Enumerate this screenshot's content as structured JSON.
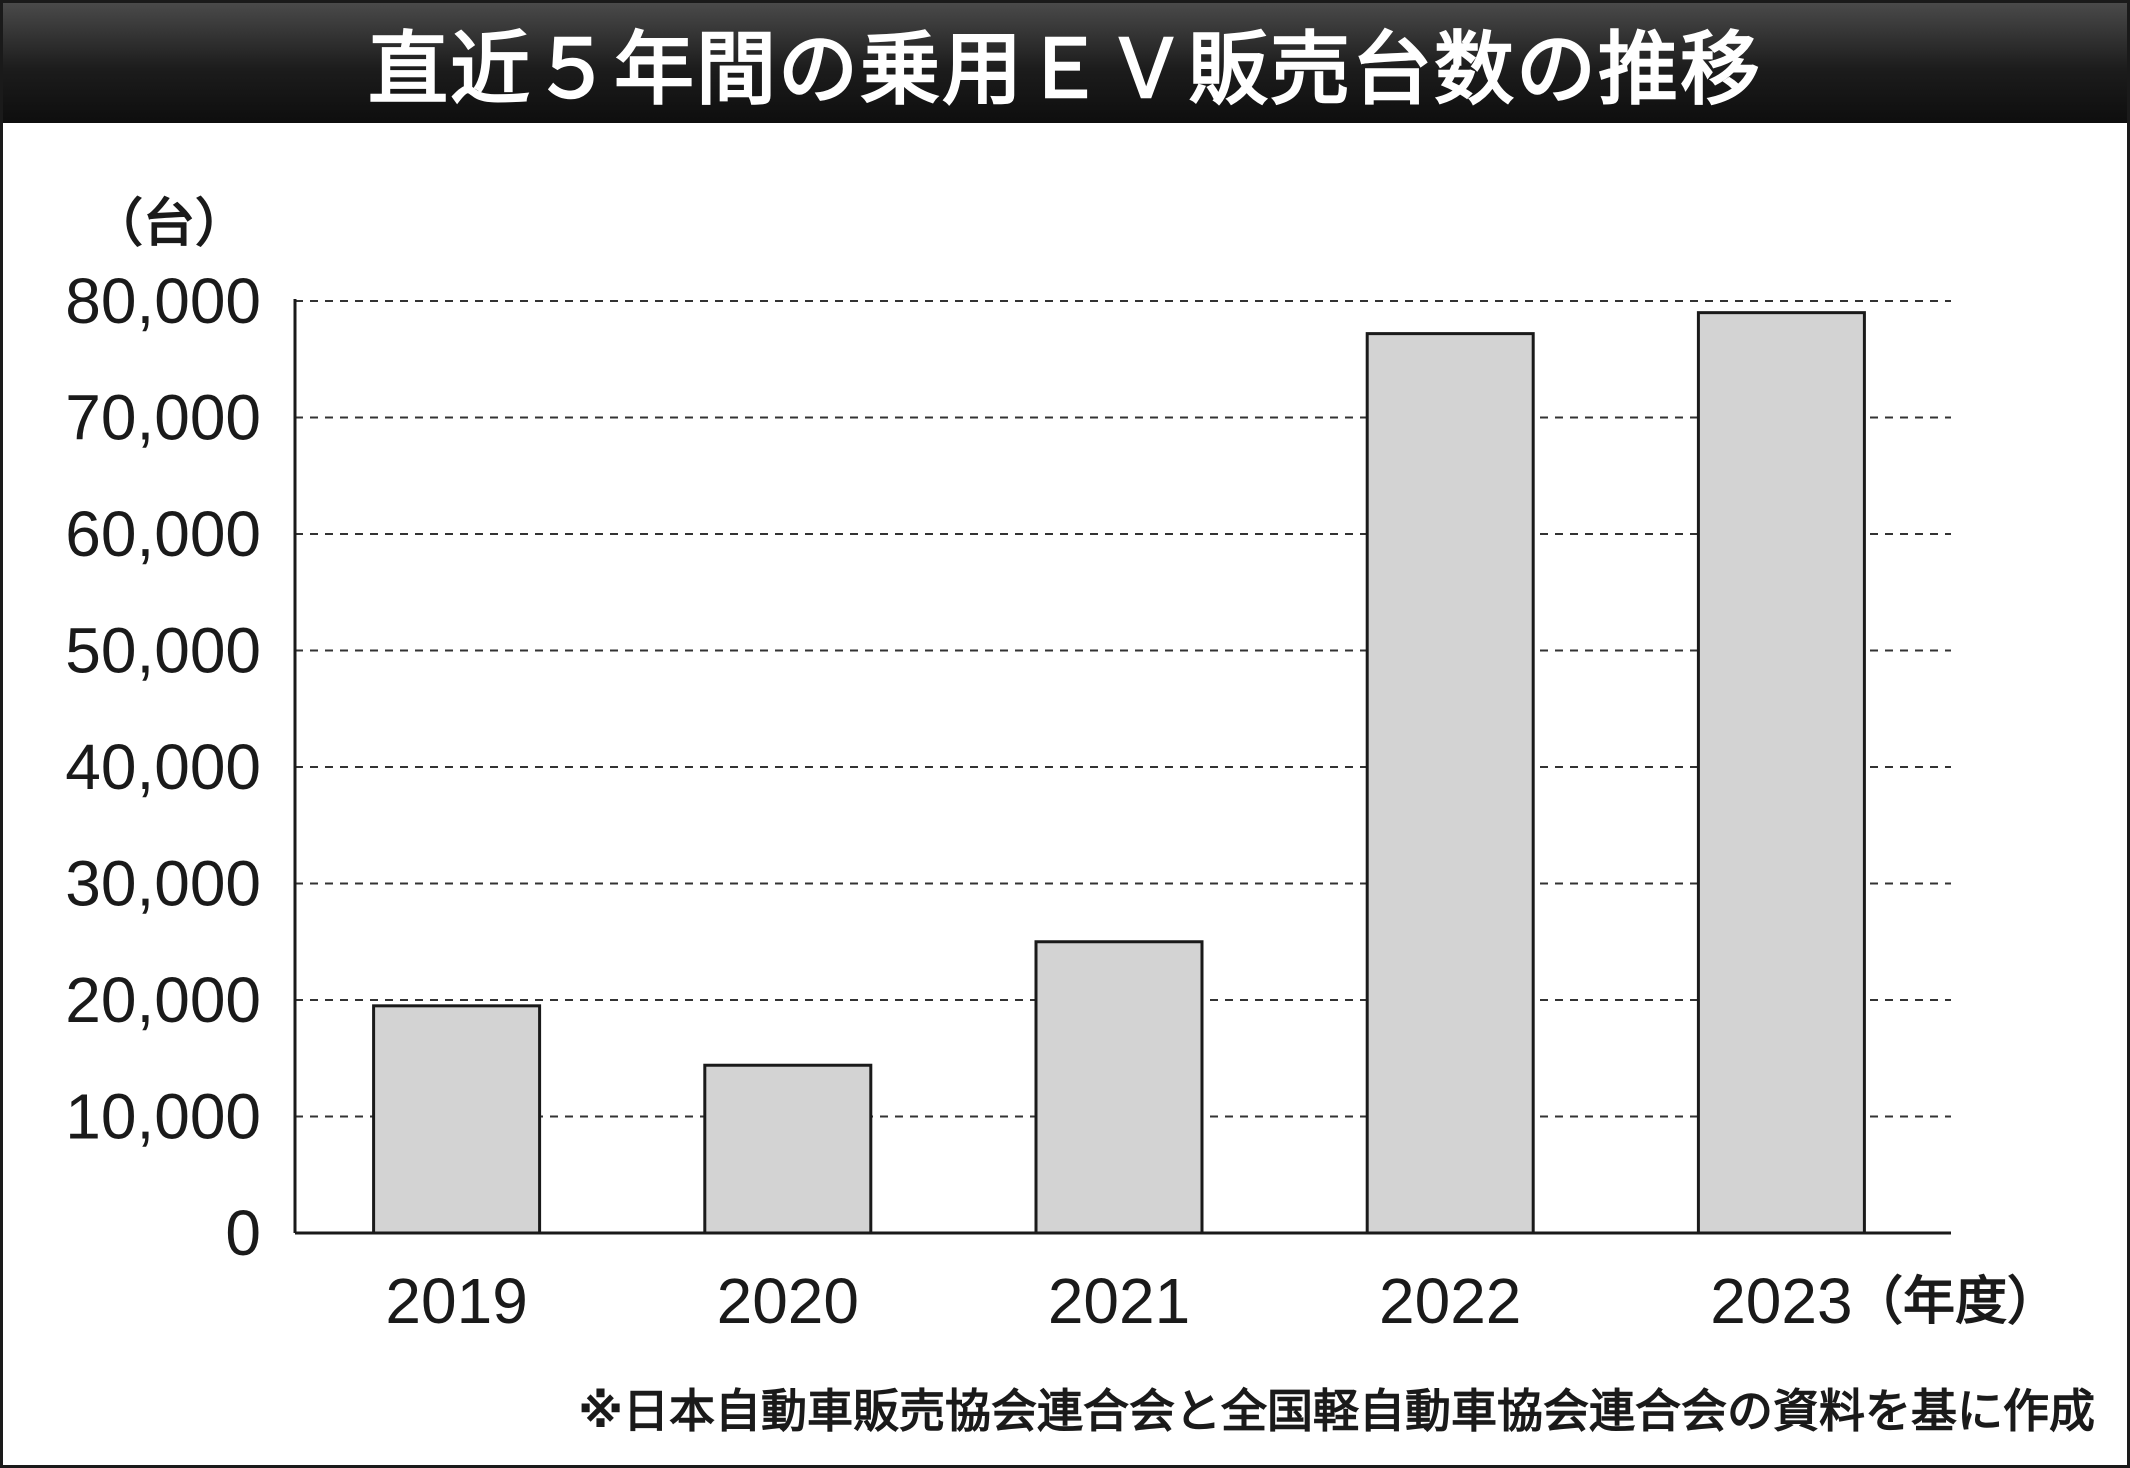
{
  "chart_data": {
    "type": "bar",
    "title": "直近５年間の乗用ＥＶ販売台数の推移",
    "ylabel": "（台）",
    "xlabel": "（年度）",
    "categories": [
      "2019",
      "2020",
      "2021",
      "2022",
      "2023"
    ],
    "values": [
      19500,
      14400,
      25000,
      77200,
      79000
    ],
    "ylim": [
      0,
      80000
    ],
    "yticks": [
      0,
      10000,
      20000,
      30000,
      40000,
      50000,
      60000,
      70000,
      80000
    ],
    "ytick_labels": [
      "0",
      "10,000",
      "20,000",
      "30,000",
      "40,000",
      "50,000",
      "60,000",
      "70,000",
      "80,000"
    ],
    "grid": "horizontal-dashed",
    "bar_color": "#d3d3d3",
    "source": "※日本自動車販売協会連合会と全国軽自動車協会連合会の資料を基に作成"
  }
}
